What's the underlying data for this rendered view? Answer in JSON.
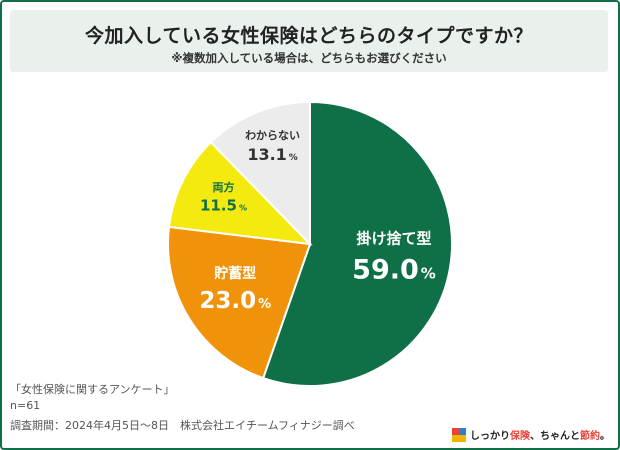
{
  "title": "今加入している女性保険はどちらのタイプですか？",
  "subtitle": "※複数加入している場合は、どちらもお選びください",
  "chart_data": {
    "type": "pie",
    "slices": [
      {
        "label": "掛け捨て型",
        "value": 59.0,
        "display": "59.0",
        "color": "#0f7047",
        "text_color": "#ffffff"
      },
      {
        "label": "貯蓄型",
        "value": 23.0,
        "display": "23.0",
        "color": "#f0920a",
        "text_color": "#ffffff"
      },
      {
        "label": "両方",
        "value": 11.5,
        "display": "11.5",
        "color": "#f5ea0f",
        "text_color": "#0f7047"
      },
      {
        "label": "わからない",
        "value": 13.1,
        "display": "13.1",
        "color": "#ececec",
        "text_color": "#333333"
      }
    ],
    "unit": "%",
    "start": "top",
    "direction": "clockwise"
  },
  "footer": {
    "survey_name": "「女性保険に関するアンケート」",
    "sample": "n=61",
    "period": "調査期間：2024年4月5日〜8日　株式会社エイチームフィナジー調べ"
  },
  "brand": {
    "text_a": "しっかり",
    "text_b": "保険",
    "text_c": "、ちゃんと",
    "text_d": "節約",
    "text_e": "。",
    "logo_colors": [
      "#e8433a",
      "#2f7fd0",
      "#f5b400"
    ]
  }
}
